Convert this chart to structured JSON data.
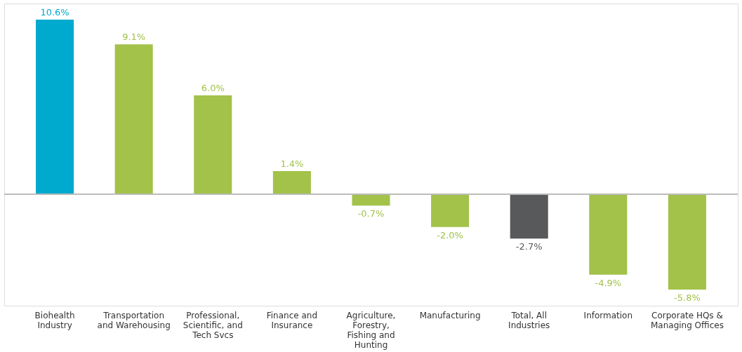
{
  "chart_data": {
    "type": "bar",
    "categories": [
      "Biohealth Industry",
      "Transportation and Warehousing",
      "Professional, Scientific, and Tech Svcs",
      "Finance and Insurance",
      "Agriculture, Forestry, Fishing and Hunting",
      "Manufacturing",
      "Total, All Industries",
      "Information",
      "Corporate HQs & Managing Offices"
    ],
    "values": [
      10.6,
      9.1,
      6.0,
      1.4,
      -0.7,
      -2.0,
      -2.7,
      -4.9,
      -5.8
    ],
    "colors": [
      "#00a9ce",
      "#a2c24a",
      "#a2c24a",
      "#a2c24a",
      "#a2c24a",
      "#a2c24a",
      "#58595b",
      "#a2c24a",
      "#a2c24a"
    ],
    "value_labels": [
      "10.6%",
      "9.1%",
      "6.0%",
      "1.4%",
      "-0.7%",
      "-2.0%",
      "-2.7%",
      "-4.9%",
      "-5.8%"
    ],
    "grid": false
  }
}
